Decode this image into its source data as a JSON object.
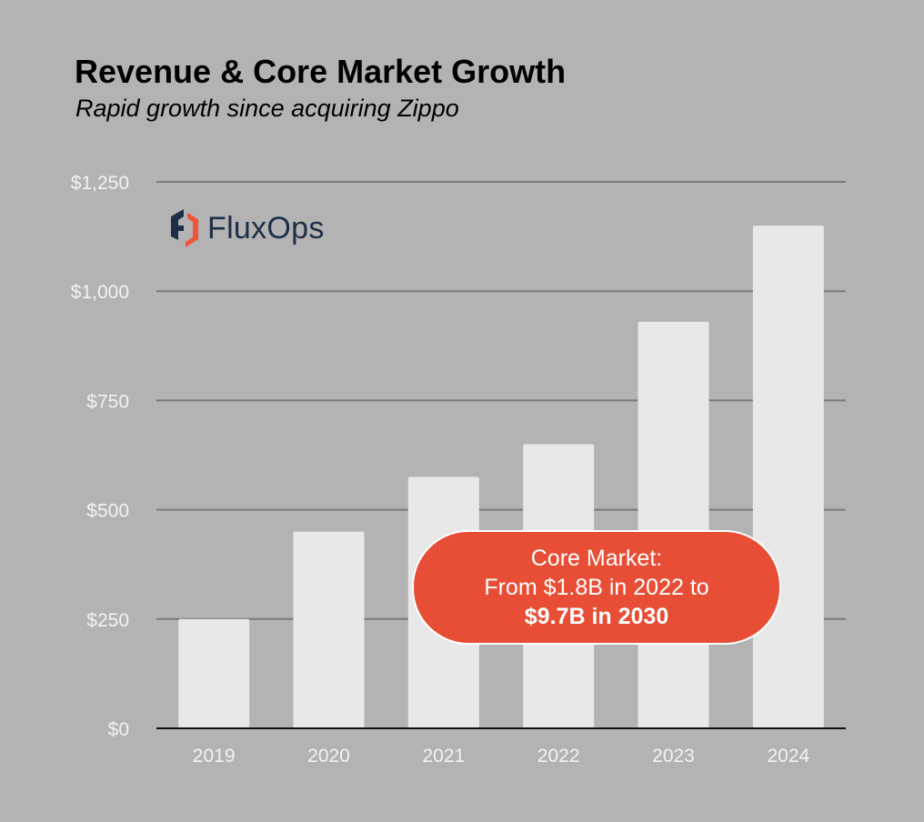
{
  "chart_data": {
    "type": "bar",
    "title": "Revenue & Core Market Growth",
    "subtitle": "Rapid growth since acquiring Zippo",
    "categories": [
      "2019",
      "2020",
      "2021",
      "2022",
      "2023",
      "2024"
    ],
    "values": [
      250,
      450,
      575,
      650,
      930,
      1150
    ],
    "ylim": [
      0,
      1250
    ],
    "yticks": [
      0,
      250,
      500,
      750,
      1000,
      1250
    ],
    "ytick_labels": [
      "$0",
      "$250",
      "$500",
      "$750",
      "$1,000",
      "$1,250"
    ],
    "xlabel": "",
    "ylabel": "",
    "grid": true,
    "bar_color": "#e8e8e8",
    "annotation": {
      "line1": "Core Market:",
      "line2": "From $1.8B in 2022 to",
      "line3": "$9.7B in 2030",
      "color": "#e84e36"
    }
  },
  "logo": {
    "text": "FluxOps",
    "colors": [
      "#1e2e47",
      "#f0553a"
    ]
  }
}
